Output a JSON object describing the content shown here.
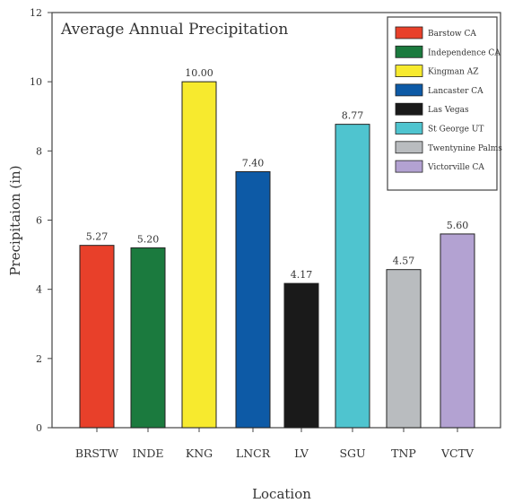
{
  "chart_data": {
    "type": "bar",
    "title": "Average Annual Precipitation",
    "xlabel": "Location",
    "ylabel": "Precipitaion (in)",
    "ylim": [
      0,
      12
    ],
    "yticks": [
      0,
      2,
      4,
      6,
      8,
      10,
      12
    ],
    "categories": [
      "BRSTW",
      "INDE",
      "KNG",
      "LNCR",
      "LV",
      "SGU",
      "TNP",
      "VCTV"
    ],
    "values": [
      5.27,
      5.2,
      10.0,
      7.4,
      4.17,
      8.77,
      4.57,
      5.6
    ],
    "data_labels": [
      "5.27",
      "5.20",
      "10.00",
      "7.40",
      "4.17",
      "8.77",
      "4.57",
      "5.60"
    ],
    "colors": [
      "#e8402a",
      "#1b7a3e",
      "#f7ea2e",
      "#0d5aa6",
      "#1a1a1a",
      "#4fc4cf",
      "#b9bcbf",
      "#b3a2d2"
    ],
    "legend": {
      "placement": "top-right",
      "entries": [
        "Barstow CA",
        "Independence CA",
        "Kingman AZ",
        "Lancaster CA",
        "Las Vegas",
        "St George UT",
        "Twentynine Palms CA",
        "Victorville CA"
      ]
    },
    "grid": false
  }
}
